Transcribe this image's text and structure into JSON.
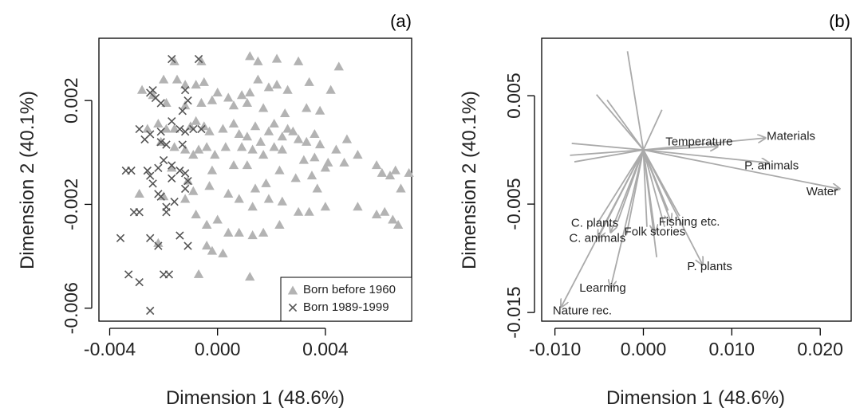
{
  "colors": {
    "born_before_1960": "#b3b3b3",
    "born_1989_1999": "#555555",
    "arrow": "#aaaaaa",
    "axis": "#000000",
    "label": "#222222"
  },
  "chart_data": [
    {
      "type": "scatter",
      "panel": "(a)",
      "xlabel": "Dimension 1 (48.6%)",
      "ylabel": "Dimension 2 (40.1%)",
      "xlim": [
        -0.0044,
        0.0072
      ],
      "ylim": [
        -0.0065,
        0.0044
      ],
      "xticks": [
        -0.004,
        0.0,
        0.004
      ],
      "xtick_labels": [
        "-0.004",
        "0.000",
        "0.004"
      ],
      "yticks": [
        -0.006,
        -0.002,
        0.002
      ],
      "ytick_labels": [
        "-0.006",
        "-0.002",
        "0.002"
      ],
      "legend": {
        "placement": "bottom-right",
        "entries": [
          {
            "name": "Born before 1960",
            "marker": "triangle",
            "series": 0
          },
          {
            "name": "Born 1989-1999",
            "marker": "cross",
            "series": 1
          }
        ]
      },
      "grid": false,
      "series": [
        {
          "name": "Born before 1960",
          "marker": "triangle",
          "points": [
            [
              0.0012,
              0.0037
            ],
            [
              0.0015,
              0.0035
            ],
            [
              0.0022,
              0.0036
            ],
            [
              0.003,
              0.0035
            ],
            [
              0.0045,
              0.0033
            ],
            [
              -0.0016,
              0.0035
            ],
            [
              -0.0006,
              0.0035
            ],
            [
              -0.002,
              0.0028
            ],
            [
              -0.0015,
              0.0028
            ],
            [
              -0.0012,
              0.0026
            ],
            [
              -0.0008,
              0.0026
            ],
            [
              -0.0005,
              0.0027
            ],
            [
              0.0,
              0.0023
            ],
            [
              0.0004,
              0.0021
            ],
            [
              0.0009,
              0.0022
            ],
            [
              0.0012,
              0.0023
            ],
            [
              0.0015,
              0.0028
            ],
            [
              0.0019,
              0.0025
            ],
            [
              0.0022,
              0.0026
            ],
            [
              0.0026,
              0.0024
            ],
            [
              0.0034,
              0.0027
            ],
            [
              0.0038,
              0.0016
            ],
            [
              0.0042,
              0.0024
            ],
            [
              -0.0028,
              0.0024
            ],
            [
              -0.0024,
              0.0022
            ],
            [
              -0.0019,
              0.0019
            ],
            [
              -0.0012,
              0.0018
            ],
            [
              -0.0006,
              0.0019
            ],
            [
              -0.0002,
              0.002
            ],
            [
              0.0006,
              0.0018
            ],
            [
              0.0011,
              0.0019
            ],
            [
              0.0017,
              0.0017
            ],
            [
              0.0025,
              0.0015
            ],
            [
              0.0033,
              0.0017
            ],
            [
              -0.0022,
              0.0011
            ],
            [
              -0.0019,
              0.0009
            ],
            [
              -0.0016,
              0.0009
            ],
            [
              -0.001,
              0.001
            ],
            [
              -0.0008,
              0.0012
            ],
            [
              -0.0005,
              0.001
            ],
            [
              -0.0003,
              0.0008
            ],
            [
              0.0002,
              0.0009
            ],
            [
              0.0006,
              0.0011
            ],
            [
              0.0008,
              0.0007
            ],
            [
              0.0011,
              0.0006
            ],
            [
              0.0014,
              0.001
            ],
            [
              0.0016,
              0.0004
            ],
            [
              0.0019,
              0.0008
            ],
            [
              0.0021,
              0.0011
            ],
            [
              0.0024,
              0.0006
            ],
            [
              0.0026,
              0.0009
            ],
            [
              0.0028,
              0.0008
            ],
            [
              0.003,
              0.0005
            ],
            [
              0.0033,
              0.0004
            ],
            [
              0.0036,
              0.0007
            ],
            [
              0.0038,
              0.0003
            ],
            [
              0.0044,
              0.0001
            ],
            [
              0.0048,
              0.0005
            ],
            [
              0.0052,
              -0.0001
            ],
            [
              -0.0026,
              0.0009
            ],
            [
              -0.0021,
              0.0004
            ],
            [
              -0.0016,
              0.0002
            ],
            [
              -0.0012,
              0.0001
            ],
            [
              -0.0009,
              -0.0001
            ],
            [
              -0.0007,
              0.0001
            ],
            [
              -0.0004,
              0.0002
            ],
            [
              -0.0001,
              -0.0001
            ],
            [
              0.0003,
              0.0002
            ],
            [
              0.0009,
              0.0002
            ],
            [
              0.0013,
              0.0001
            ],
            [
              0.0017,
              -0.0001
            ],
            [
              0.0021,
              0.0002
            ],
            [
              0.0024,
              0.0001
            ],
            [
              0.0032,
              -0.0003
            ],
            [
              0.0036,
              -0.0002
            ],
            [
              0.0041,
              -0.0004
            ],
            [
              0.0047,
              -0.0004
            ],
            [
              0.0059,
              -0.0005
            ],
            [
              0.0061,
              -0.0008
            ],
            [
              0.0064,
              -0.0009
            ],
            [
              0.0066,
              -0.0007
            ],
            [
              0.0068,
              -0.0014
            ],
            [
              0.0071,
              -0.0008
            ],
            [
              -0.0017,
              -0.0006
            ],
            [
              -0.0011,
              -0.0011
            ],
            [
              -0.0002,
              -0.0007
            ],
            [
              0.0006,
              -0.0005
            ],
            [
              0.0011,
              -0.0005
            ],
            [
              0.0014,
              -0.0014
            ],
            [
              0.0018,
              -0.0012
            ],
            [
              0.0023,
              -0.0007
            ],
            [
              0.0029,
              -0.001
            ],
            [
              0.0035,
              -0.0009
            ],
            [
              0.0037,
              -0.0014
            ],
            [
              0.004,
              -0.0006
            ],
            [
              -0.0029,
              -0.0016
            ],
            [
              -0.002,
              -0.0017
            ],
            [
              -0.0012,
              -0.0018
            ],
            [
              -0.0009,
              -0.0015
            ],
            [
              -0.0003,
              -0.0013
            ],
            [
              0.0004,
              -0.0016
            ],
            [
              0.0008,
              -0.0018
            ],
            [
              0.0013,
              -0.0021
            ],
            [
              0.0019,
              -0.0018
            ],
            [
              0.0024,
              -0.0019
            ],
            [
              0.003,
              -0.0023
            ],
            [
              0.0034,
              -0.0023
            ],
            [
              0.004,
              -0.0021
            ],
            [
              0.0052,
              -0.0021
            ],
            [
              0.0059,
              -0.0024
            ],
            [
              0.0062,
              -0.0023
            ],
            [
              0.0065,
              -0.0026
            ],
            [
              0.0067,
              -0.0028
            ],
            [
              -0.0008,
              -0.0024
            ],
            [
              -0.0004,
              -0.0028
            ],
            [
              0.0,
              -0.0026
            ],
            [
              0.0004,
              -0.0031
            ],
            [
              0.0008,
              -0.0031
            ],
            [
              0.0013,
              -0.0032
            ],
            [
              0.0017,
              -0.0031
            ],
            [
              0.0023,
              -0.0028
            ],
            [
              -0.0004,
              -0.0036
            ],
            [
              -0.0002,
              -0.0038
            ],
            [
              0.0002,
              -0.0039
            ],
            [
              -0.0004,
              -0.0028
            ],
            [
              -0.0007,
              -0.0047
            ],
            [
              0.0012,
              -0.0048
            ],
            [
              -0.0022,
              -0.0035
            ]
          ]
        },
        {
          "name": "Born 1989-1999",
          "marker": "cross",
          "points": [
            [
              -0.0017,
              0.0036
            ],
            [
              -0.0007,
              0.0036
            ],
            [
              -0.0025,
              0.0023
            ],
            [
              -0.0024,
              0.0024
            ],
            [
              -0.0023,
              0.0021
            ],
            [
              -0.0021,
              0.0019
            ],
            [
              -0.0012,
              0.0024
            ],
            [
              -0.0011,
              0.002
            ],
            [
              -0.0013,
              0.0016
            ],
            [
              -0.0029,
              0.0009
            ],
            [
              -0.0025,
              0.0007
            ],
            [
              -0.0021,
              0.0008
            ],
            [
              -0.0017,
              0.0012
            ],
            [
              -0.0014,
              0.0009
            ],
            [
              -0.0012,
              0.0008
            ],
            [
              -0.0009,
              0.0009
            ],
            [
              -0.0027,
              0.0005
            ],
            [
              -0.0021,
              0.0004
            ],
            [
              -0.0019,
              0.0003
            ],
            [
              -0.0013,
              0.0003
            ],
            [
              -0.0006,
              0.0009
            ],
            [
              -0.0034,
              -0.0007
            ],
            [
              -0.0032,
              -0.0007
            ],
            [
              -0.0026,
              -0.0007
            ],
            [
              -0.0025,
              -0.0009
            ],
            [
              -0.0022,
              -0.0006
            ],
            [
              -0.002,
              -0.0003
            ],
            [
              -0.0017,
              -0.0005
            ],
            [
              -0.0017,
              -0.001
            ],
            [
              -0.0014,
              -0.0007
            ],
            [
              -0.0012,
              -0.0008
            ],
            [
              -0.0011,
              -0.0011
            ],
            [
              -0.0024,
              -0.0012
            ],
            [
              -0.0022,
              -0.0016
            ],
            [
              -0.0019,
              -0.0021
            ],
            [
              -0.0016,
              -0.0019
            ],
            [
              -0.0021,
              -0.0017
            ],
            [
              -0.0031,
              -0.0023
            ],
            [
              -0.0029,
              -0.0023
            ],
            [
              -0.0019,
              -0.0023
            ],
            [
              -0.0036,
              -0.0033
            ],
            [
              -0.0025,
              -0.0033
            ],
            [
              -0.0022,
              -0.0036
            ],
            [
              -0.0014,
              -0.0032
            ],
            [
              -0.0011,
              -0.0036
            ],
            [
              -0.0033,
              -0.0047
            ],
            [
              -0.0029,
              -0.005
            ],
            [
              -0.002,
              -0.0047
            ],
            [
              -0.0018,
              -0.0047
            ],
            [
              -0.0025,
              -0.0061
            ],
            [
              -0.0012,
              -0.0014
            ]
          ]
        }
      ]
    },
    {
      "type": "biplot",
      "panel": "(b)",
      "xlabel": "Dimension 1 (48.6%)",
      "ylabel": "Dimension 2 (40.1%)",
      "xlim": [
        -0.0115,
        0.0235
      ],
      "ylim": [
        -0.0158,
        0.0103
      ],
      "xticks": [
        -0.01,
        0.0,
        0.01,
        0.02
      ],
      "xtick_labels": [
        "-0.010",
        "0.000",
        "0.010",
        "0.020"
      ],
      "yticks": [
        -0.015,
        -0.005,
        0.005
      ],
      "ytick_labels": [
        "-0.015",
        "-0.005",
        "0.005"
      ],
      "grid": false,
      "origin": [
        0.0,
        0.0
      ],
      "labeled_vectors": [
        {
          "name": "Materials",
          "x": 0.0138,
          "y": 0.0011,
          "label": "Materials",
          "label_pos": [
            0.0167,
            0.0012
          ]
        },
        {
          "name": "Temperature",
          "x": 0.0084,
          "y": 0.0003,
          "label": "Temperature",
          "label_pos": [
            0.0063,
            0.0007
          ]
        },
        {
          "name": "P. animals",
          "x": 0.0142,
          "y": -0.0012,
          "label": "P. animals",
          "label_pos": [
            0.0145,
            -0.0015
          ]
        },
        {
          "name": "Water",
          "x": 0.0222,
          "y": -0.0036,
          "label": "Water",
          "label_pos": [
            0.0202,
            -0.0039
          ]
        },
        {
          "name": "Fishing etc.",
          "x": 0.0031,
          "y": -0.0066,
          "label": "Fishing etc.",
          "label_pos": [
            0.0052,
            -0.0067
          ]
        },
        {
          "name": "Folk stories",
          "x": 0.0013,
          "y": -0.0076,
          "label": "Folk stories",
          "label_pos": [
            0.0013,
            -0.0076
          ]
        },
        {
          "name": "P. plants",
          "x": 0.0067,
          "y": -0.0106,
          "label": "P. plants",
          "label_pos": [
            0.0075,
            -0.0108
          ]
        },
        {
          "name": "C. plants",
          "x": -0.0037,
          "y": -0.0076,
          "label": "C. plants",
          "label_pos": [
            -0.0055,
            -0.0068
          ]
        },
        {
          "name": "C. animals",
          "x": -0.0051,
          "y": -0.0081,
          "label": "C. animals",
          "label_pos": [
            -0.0052,
            -0.0082
          ]
        },
        {
          "name": "Learning",
          "x": -0.0037,
          "y": -0.0127,
          "label": "Learning",
          "label_pos": [
            -0.0046,
            -0.0128
          ]
        },
        {
          "name": "Nature rec.",
          "x": -0.0093,
          "y": -0.0145,
          "label": "Nature rec.",
          "label_pos": [
            -0.0069,
            -0.0149
          ]
        }
      ],
      "unlabeled_vectors": [
        [
          -0.0018,
          0.0091
        ],
        [
          -0.0053,
          0.0051
        ],
        [
          -0.0041,
          0.0046
        ],
        [
          0.0021,
          0.0037
        ],
        [
          -0.0081,
          0.0006
        ],
        [
          -0.0083,
          -0.0005
        ],
        [
          -0.0078,
          -0.0011
        ],
        [
          -0.0029,
          -0.0066
        ],
        [
          -0.0053,
          -0.0069
        ],
        [
          -0.0019,
          -0.0078
        ],
        [
          0.0004,
          -0.0071
        ],
        [
          0.0024,
          -0.0071
        ],
        [
          0.0041,
          -0.0061
        ],
        [
          0.0028,
          -0.0056
        ],
        [
          0.0015,
          -0.0099
        ]
      ]
    }
  ]
}
